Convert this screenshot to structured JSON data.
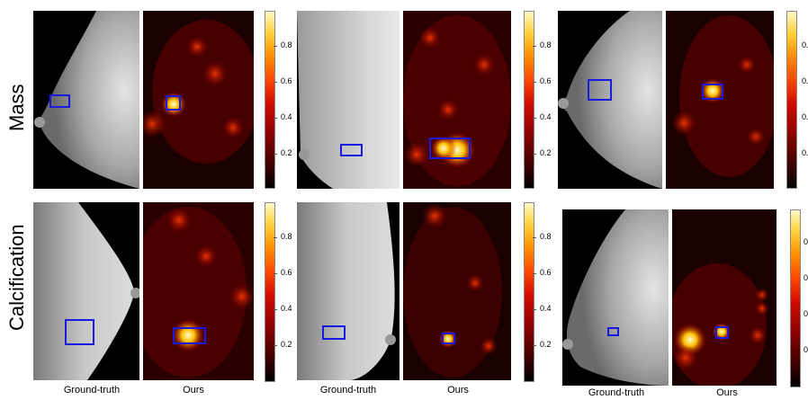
{
  "row_labels": [
    "Mass",
    "Calcification"
  ],
  "captions": {
    "ground_truth": "Ground-truth",
    "ours": "Ours"
  },
  "colorbar_ticks": [
    "0.8",
    "0.6",
    "0.4",
    "0.2"
  ],
  "colorbar_ticks_cut": [
    "0.8",
    "0.6",
    "0.4",
    "0.2"
  ],
  "colors": {
    "box": "#1a1adf",
    "colormap": "hot"
  }
}
